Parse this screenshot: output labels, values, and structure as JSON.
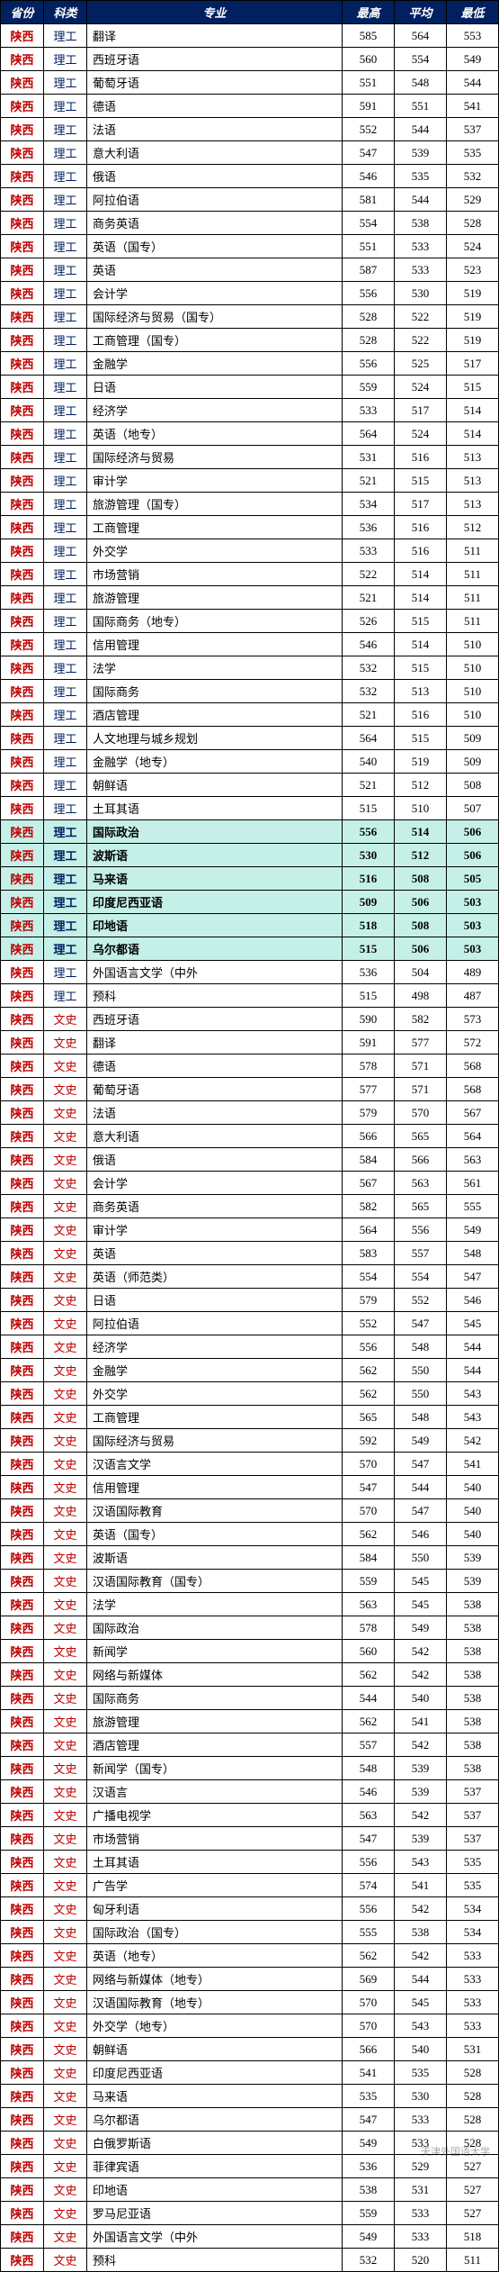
{
  "headers": {
    "province": "省份",
    "category": "科类",
    "major": "专业",
    "max": "最高",
    "avg": "平均",
    "min": "最低"
  },
  "category_labels": {
    "sci": "理工",
    "art": "文史"
  },
  "province_label": "陕西",
  "watermark": "天津外国语大学",
  "rows": [
    {
      "cat": "sci",
      "major": "翻译",
      "max": 585,
      "avg": 564,
      "min": 553,
      "hl": false
    },
    {
      "cat": "sci",
      "major": "西班牙语",
      "max": 560,
      "avg": 554,
      "min": 549,
      "hl": false
    },
    {
      "cat": "sci",
      "major": "葡萄牙语",
      "max": 551,
      "avg": 548,
      "min": 544,
      "hl": false
    },
    {
      "cat": "sci",
      "major": "德语",
      "max": 591,
      "avg": 551,
      "min": 541,
      "hl": false
    },
    {
      "cat": "sci",
      "major": "法语",
      "max": 552,
      "avg": 544,
      "min": 537,
      "hl": false
    },
    {
      "cat": "sci",
      "major": "意大利语",
      "max": 547,
      "avg": 539,
      "min": 535,
      "hl": false
    },
    {
      "cat": "sci",
      "major": "俄语",
      "max": 546,
      "avg": 535,
      "min": 532,
      "hl": false
    },
    {
      "cat": "sci",
      "major": "阿拉伯语",
      "max": 581,
      "avg": 544,
      "min": 529,
      "hl": false
    },
    {
      "cat": "sci",
      "major": "商务英语",
      "max": 554,
      "avg": 538,
      "min": 528,
      "hl": false
    },
    {
      "cat": "sci",
      "major": "英语（国专）",
      "max": 551,
      "avg": 533,
      "min": 524,
      "hl": false
    },
    {
      "cat": "sci",
      "major": "英语",
      "max": 587,
      "avg": 533,
      "min": 523,
      "hl": false
    },
    {
      "cat": "sci",
      "major": "会计学",
      "max": 556,
      "avg": 530,
      "min": 519,
      "hl": false
    },
    {
      "cat": "sci",
      "major": "国际经济与贸易（国专）",
      "max": 528,
      "avg": 522,
      "min": 519,
      "hl": false
    },
    {
      "cat": "sci",
      "major": "工商管理（国专）",
      "max": 528,
      "avg": 522,
      "min": 519,
      "hl": false
    },
    {
      "cat": "sci",
      "major": "金融学",
      "max": 556,
      "avg": 525,
      "min": 517,
      "hl": false
    },
    {
      "cat": "sci",
      "major": "日语",
      "max": 559,
      "avg": 524,
      "min": 515,
      "hl": false
    },
    {
      "cat": "sci",
      "major": "经济学",
      "max": 533,
      "avg": 517,
      "min": 514,
      "hl": false
    },
    {
      "cat": "sci",
      "major": "英语（地专）",
      "max": 564,
      "avg": 524,
      "min": 514,
      "hl": false
    },
    {
      "cat": "sci",
      "major": "国际经济与贸易",
      "max": 531,
      "avg": 516,
      "min": 513,
      "hl": false
    },
    {
      "cat": "sci",
      "major": "审计学",
      "max": 521,
      "avg": 515,
      "min": 513,
      "hl": false
    },
    {
      "cat": "sci",
      "major": "旅游管理（国专）",
      "max": 534,
      "avg": 517,
      "min": 513,
      "hl": false
    },
    {
      "cat": "sci",
      "major": "工商管理",
      "max": 536,
      "avg": 516,
      "min": 512,
      "hl": false
    },
    {
      "cat": "sci",
      "major": "外交学",
      "max": 533,
      "avg": 516,
      "min": 511,
      "hl": false
    },
    {
      "cat": "sci",
      "major": "市场营销",
      "max": 522,
      "avg": 514,
      "min": 511,
      "hl": false
    },
    {
      "cat": "sci",
      "major": "旅游管理",
      "max": 521,
      "avg": 514,
      "min": 511,
      "hl": false
    },
    {
      "cat": "sci",
      "major": "国际商务（地专）",
      "max": 526,
      "avg": 515,
      "min": 511,
      "hl": false
    },
    {
      "cat": "sci",
      "major": "信用管理",
      "max": 546,
      "avg": 514,
      "min": 510,
      "hl": false
    },
    {
      "cat": "sci",
      "major": "法学",
      "max": 532,
      "avg": 515,
      "min": 510,
      "hl": false
    },
    {
      "cat": "sci",
      "major": "国际商务",
      "max": 532,
      "avg": 513,
      "min": 510,
      "hl": false
    },
    {
      "cat": "sci",
      "major": "酒店管理",
      "max": 521,
      "avg": 516,
      "min": 510,
      "hl": false
    },
    {
      "cat": "sci",
      "major": "人文地理与城乡规划",
      "max": 564,
      "avg": 515,
      "min": 509,
      "hl": false
    },
    {
      "cat": "sci",
      "major": "金融学（地专）",
      "max": 540,
      "avg": 519,
      "min": 509,
      "hl": false
    },
    {
      "cat": "sci",
      "major": "朝鲜语",
      "max": 521,
      "avg": 512,
      "min": 508,
      "hl": false
    },
    {
      "cat": "sci",
      "major": "土耳其语",
      "max": 515,
      "avg": 510,
      "min": 507,
      "hl": false
    },
    {
      "cat": "sci",
      "major": "国际政治",
      "max": 556,
      "avg": 514,
      "min": 506,
      "hl": true
    },
    {
      "cat": "sci",
      "major": "波斯语",
      "max": 530,
      "avg": 512,
      "min": 506,
      "hl": true
    },
    {
      "cat": "sci",
      "major": "马来语",
      "max": 516,
      "avg": 508,
      "min": 505,
      "hl": true
    },
    {
      "cat": "sci",
      "major": "印度尼西亚语",
      "max": 509,
      "avg": 506,
      "min": 503,
      "hl": true
    },
    {
      "cat": "sci",
      "major": "印地语",
      "max": 518,
      "avg": 508,
      "min": 503,
      "hl": true
    },
    {
      "cat": "sci",
      "major": "乌尔都语",
      "max": 515,
      "avg": 506,
      "min": 503,
      "hl": true
    },
    {
      "cat": "sci",
      "major": "外国语言文学（中外",
      "max": 536,
      "avg": 504,
      "min": 489,
      "hl": false
    },
    {
      "cat": "sci",
      "major": "预科",
      "max": 515,
      "avg": 498,
      "min": 487,
      "hl": false
    },
    {
      "cat": "art",
      "major": "西班牙语",
      "max": 590,
      "avg": 582,
      "min": 573,
      "hl": false
    },
    {
      "cat": "art",
      "major": "翻译",
      "max": 591,
      "avg": 577,
      "min": 572,
      "hl": false
    },
    {
      "cat": "art",
      "major": "德语",
      "max": 578,
      "avg": 571,
      "min": 568,
      "hl": false
    },
    {
      "cat": "art",
      "major": "葡萄牙语",
      "max": 577,
      "avg": 571,
      "min": 568,
      "hl": false
    },
    {
      "cat": "art",
      "major": "法语",
      "max": 579,
      "avg": 570,
      "min": 567,
      "hl": false
    },
    {
      "cat": "art",
      "major": "意大利语",
      "max": 566,
      "avg": 565,
      "min": 564,
      "hl": false
    },
    {
      "cat": "art",
      "major": "俄语",
      "max": 584,
      "avg": 566,
      "min": 563,
      "hl": false
    },
    {
      "cat": "art",
      "major": "会计学",
      "max": 567,
      "avg": 563,
      "min": 561,
      "hl": false
    },
    {
      "cat": "art",
      "major": "商务英语",
      "max": 582,
      "avg": 565,
      "min": 555,
      "hl": false
    },
    {
      "cat": "art",
      "major": "审计学",
      "max": 564,
      "avg": 556,
      "min": 549,
      "hl": false
    },
    {
      "cat": "art",
      "major": "英语",
      "max": 583,
      "avg": 557,
      "min": 548,
      "hl": false
    },
    {
      "cat": "art",
      "major": "英语（师范类）",
      "max": 554,
      "avg": 554,
      "min": 547,
      "hl": false
    },
    {
      "cat": "art",
      "major": "日语",
      "max": 579,
      "avg": 552,
      "min": 546,
      "hl": false
    },
    {
      "cat": "art",
      "major": "阿拉伯语",
      "max": 552,
      "avg": 547,
      "min": 545,
      "hl": false
    },
    {
      "cat": "art",
      "major": "经济学",
      "max": 556,
      "avg": 548,
      "min": 544,
      "hl": false
    },
    {
      "cat": "art",
      "major": "金融学",
      "max": 562,
      "avg": 550,
      "min": 544,
      "hl": false
    },
    {
      "cat": "art",
      "major": "外交学",
      "max": 562,
      "avg": 550,
      "min": 543,
      "hl": false
    },
    {
      "cat": "art",
      "major": "工商管理",
      "max": 565,
      "avg": 548,
      "min": 543,
      "hl": false
    },
    {
      "cat": "art",
      "major": "国际经济与贸易",
      "max": 592,
      "avg": 549,
      "min": 542,
      "hl": false
    },
    {
      "cat": "art",
      "major": "汉语言文学",
      "max": 570,
      "avg": 547,
      "min": 541,
      "hl": false
    },
    {
      "cat": "art",
      "major": "信用管理",
      "max": 547,
      "avg": 544,
      "min": 540,
      "hl": false
    },
    {
      "cat": "art",
      "major": "汉语国际教育",
      "max": 570,
      "avg": 547,
      "min": 540,
      "hl": false
    },
    {
      "cat": "art",
      "major": "英语（国专）",
      "max": 562,
      "avg": 546,
      "min": 540,
      "hl": false
    },
    {
      "cat": "art",
      "major": "波斯语",
      "max": 584,
      "avg": 550,
      "min": 539,
      "hl": false
    },
    {
      "cat": "art",
      "major": "汉语国际教育（国专）",
      "max": 559,
      "avg": 545,
      "min": 539,
      "hl": false
    },
    {
      "cat": "art",
      "major": "法学",
      "max": 563,
      "avg": 545,
      "min": 538,
      "hl": false
    },
    {
      "cat": "art",
      "major": "国际政治",
      "max": 578,
      "avg": 549,
      "min": 538,
      "hl": false
    },
    {
      "cat": "art",
      "major": "新闻学",
      "max": 560,
      "avg": 542,
      "min": 538,
      "hl": false
    },
    {
      "cat": "art",
      "major": "网络与新媒体",
      "max": 562,
      "avg": 542,
      "min": 538,
      "hl": false
    },
    {
      "cat": "art",
      "major": "国际商务",
      "max": 544,
      "avg": 540,
      "min": 538,
      "hl": false
    },
    {
      "cat": "art",
      "major": "旅游管理",
      "max": 562,
      "avg": 541,
      "min": 538,
      "hl": false
    },
    {
      "cat": "art",
      "major": "酒店管理",
      "max": 557,
      "avg": 542,
      "min": 538,
      "hl": false
    },
    {
      "cat": "art",
      "major": "新闻学（国专）",
      "max": 548,
      "avg": 539,
      "min": 538,
      "hl": false
    },
    {
      "cat": "art",
      "major": "汉语言",
      "max": 546,
      "avg": 539,
      "min": 537,
      "hl": false
    },
    {
      "cat": "art",
      "major": "广播电视学",
      "max": 563,
      "avg": 542,
      "min": 537,
      "hl": false
    },
    {
      "cat": "art",
      "major": "市场营销",
      "max": 547,
      "avg": 539,
      "min": 537,
      "hl": false
    },
    {
      "cat": "art",
      "major": "土耳其语",
      "max": 556,
      "avg": 543,
      "min": 535,
      "hl": false
    },
    {
      "cat": "art",
      "major": "广告学",
      "max": 574,
      "avg": 541,
      "min": 535,
      "hl": false
    },
    {
      "cat": "art",
      "major": "匈牙利语",
      "max": 556,
      "avg": 542,
      "min": 534,
      "hl": false
    },
    {
      "cat": "art",
      "major": "国际政治（国专）",
      "max": 555,
      "avg": 538,
      "min": 534,
      "hl": false
    },
    {
      "cat": "art",
      "major": "英语（地专）",
      "max": 562,
      "avg": 542,
      "min": 533,
      "hl": false
    },
    {
      "cat": "art",
      "major": "网络与新媒体（地专）",
      "max": 569,
      "avg": 544,
      "min": 533,
      "hl": false
    },
    {
      "cat": "art",
      "major": "汉语国际教育（地专）",
      "max": 570,
      "avg": 545,
      "min": 533,
      "hl": false
    },
    {
      "cat": "art",
      "major": "外交学（地专）",
      "max": 570,
      "avg": 543,
      "min": 533,
      "hl": false
    },
    {
      "cat": "art",
      "major": "朝鲜语",
      "max": 566,
      "avg": 540,
      "min": 531,
      "hl": false
    },
    {
      "cat": "art",
      "major": "印度尼西亚语",
      "max": 541,
      "avg": 535,
      "min": 528,
      "hl": false
    },
    {
      "cat": "art",
      "major": "马来语",
      "max": 535,
      "avg": 530,
      "min": 528,
      "hl": false
    },
    {
      "cat": "art",
      "major": "乌尔都语",
      "max": 547,
      "avg": 533,
      "min": 528,
      "hl": false
    },
    {
      "cat": "art",
      "major": "白俄罗斯语",
      "max": 549,
      "avg": 533,
      "min": 528,
      "hl": false
    },
    {
      "cat": "art",
      "major": "菲律宾语",
      "max": 536,
      "avg": 529,
      "min": 527,
      "hl": false
    },
    {
      "cat": "art",
      "major": "印地语",
      "max": 538,
      "avg": 531,
      "min": 527,
      "hl": false
    },
    {
      "cat": "art",
      "major": "罗马尼亚语",
      "max": 559,
      "avg": 533,
      "min": 527,
      "hl": false
    },
    {
      "cat": "art",
      "major": "外国语言文学（中外",
      "max": 549,
      "avg": 533,
      "min": 518,
      "hl": false
    },
    {
      "cat": "art",
      "major": "预科",
      "max": 532,
      "avg": 520,
      "min": 511,
      "hl": false
    }
  ]
}
